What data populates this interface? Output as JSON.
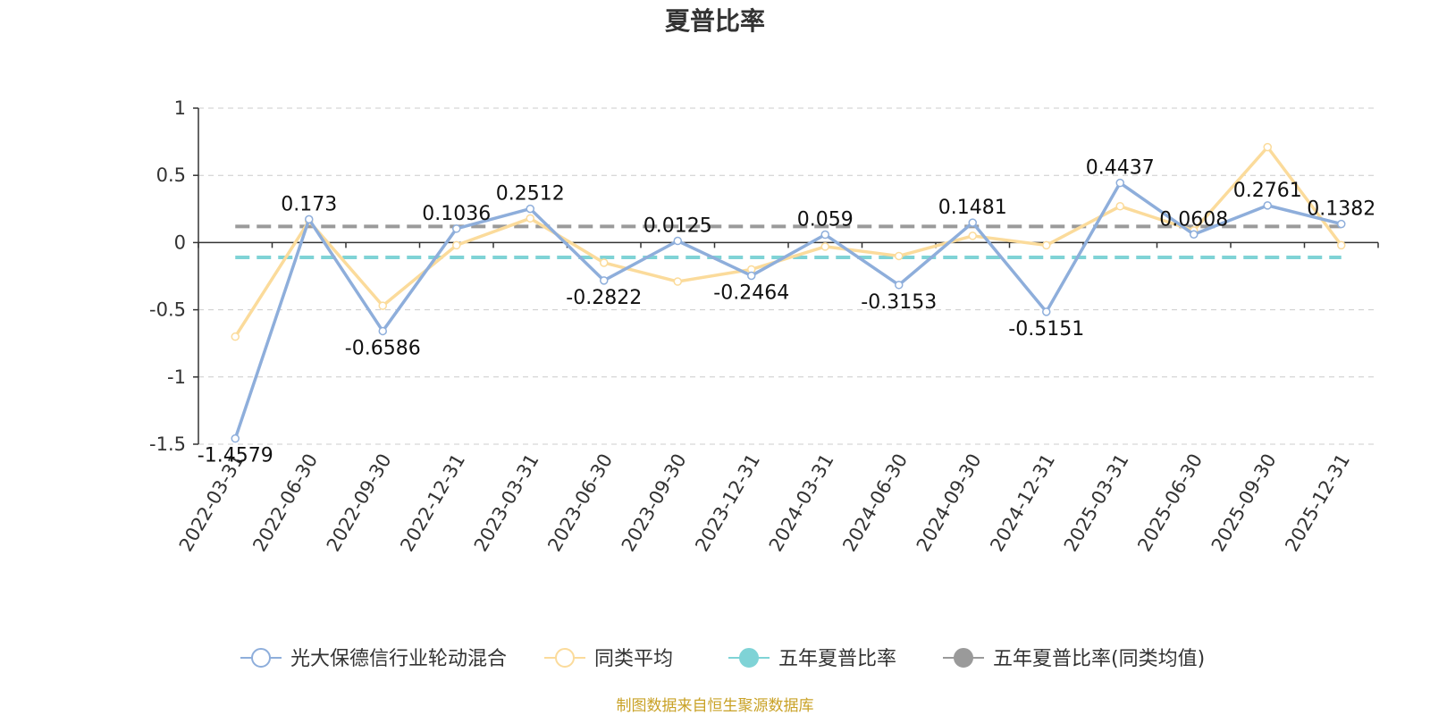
{
  "colors": {
    "fund": "#8eaedb",
    "peer_avg": "#fbdb9b",
    "five_year": "#7fd3d6",
    "five_year_peer": "#9a9a9a",
    "axis": "#333333",
    "grid": "#cccccc",
    "source": "#c9a227"
  },
  "icons": {
    "legend_line_marker": "hollow-circle",
    "legend_dash_marker": "filled-circle"
  },
  "source_note": "制图数据来自恒生聚源数据库",
  "chart_data": {
    "type": "line",
    "title": "夏普比率",
    "xlabel": "",
    "ylabel": "",
    "ylim": [
      -1.5,
      1
    ],
    "yticks": [
      "1",
      "0.5",
      "0",
      "-0.5",
      "-1",
      "-1.5"
    ],
    "ytick_values": [
      1,
      0.5,
      0,
      -0.5,
      -1,
      -1.5
    ],
    "grid": "horizontal-dashed",
    "legend_position": "bottom",
    "categories": [
      "2022-03-31",
      "2022-06-30",
      "2022-09-30",
      "2022-12-31",
      "2023-03-31",
      "2023-06-30",
      "2023-09-30",
      "2023-12-31",
      "2024-03-31",
      "2024-06-30",
      "2024-09-30",
      "2024-12-31",
      "2025-03-31",
      "2025-06-30",
      "2025-09-30",
      "2025-12-31"
    ],
    "series": [
      {
        "name": "光大保德信行业轮动混合",
        "kind": "line",
        "values": [
          -1.4579,
          0.173,
          -0.6586,
          0.1036,
          0.2512,
          -0.2822,
          0.0125,
          -0.2464,
          0.059,
          -0.3153,
          0.1481,
          -0.5151,
          0.4437,
          0.0608,
          0.2761,
          0.1382
        ],
        "labels": [
          "-1.4579",
          "0.173",
          "-0.6586",
          "0.1036",
          "0.2512",
          "-0.2822",
          "0.0125",
          "-0.2464",
          "0.059",
          "-0.3153",
          "0.1481",
          "-0.5151",
          "0.4437",
          "0.0608",
          "0.2761",
          "0.1382"
        ]
      },
      {
        "name": "同类平均",
        "kind": "line",
        "values": [
          -0.7,
          0.16,
          -0.47,
          -0.02,
          0.18,
          -0.15,
          -0.29,
          -0.2,
          -0.03,
          -0.1,
          0.05,
          -0.02,
          0.27,
          0.09,
          0.71,
          -0.02
        ]
      },
      {
        "name": "五年夏普比率",
        "kind": "reference",
        "value": -0.11
      },
      {
        "name": "五年夏普比率(同类均值)",
        "kind": "reference",
        "value": 0.12
      }
    ]
  }
}
